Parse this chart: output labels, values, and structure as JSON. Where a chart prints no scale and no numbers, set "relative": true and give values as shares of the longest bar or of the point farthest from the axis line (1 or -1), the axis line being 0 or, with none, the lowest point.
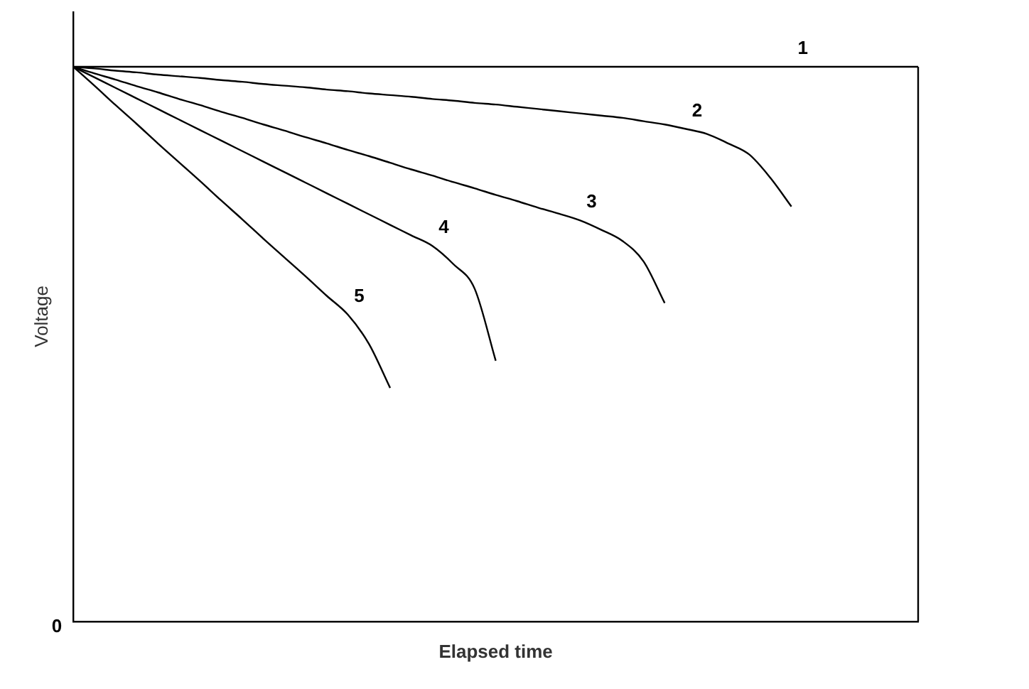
{
  "chart_data": {
    "type": "line",
    "relative": true,
    "xlabel": "Elapsed time",
    "ylabel": "Voltage",
    "marker": "none",
    "grid": false,
    "annotations": [
      "0"
    ],
    "categories": [
      null,
      null,
      null,
      null,
      null,
      null,
      null,
      null,
      null,
      null,
      null,
      null,
      null,
      null,
      null,
      null,
      null,
      null,
      null,
      null,
      null,
      null,
      null,
      null,
      null,
      null,
      null,
      null,
      null,
      null,
      null,
      null,
      null,
      null,
      null,
      null,
      null,
      null,
      null,
      null,
      null
    ],
    "series": [
      {
        "name": "1",
        "color": "#000000",
        "values": [
          1,
          1,
          1,
          1,
          1,
          1,
          1,
          1,
          1,
          1,
          1,
          1,
          1,
          1,
          1,
          1,
          1,
          1,
          1,
          1,
          1,
          1,
          1,
          1,
          1,
          1,
          1,
          1,
          1,
          1,
          1,
          1,
          1,
          1,
          1,
          1,
          1,
          1,
          1,
          1,
          1
        ]
      },
      {
        "name": "2",
        "color": "#000000",
        "values": [
          1,
          0.997,
          0.993,
          0.99,
          0.986,
          0.983,
          0.98,
          0.976,
          0.973,
          0.969,
          0.966,
          0.963,
          0.959,
          0.956,
          0.952,
          0.949,
          0.946,
          0.942,
          0.939,
          0.935,
          0.932,
          0.928,
          0.924,
          0.92,
          0.916,
          0.912,
          0.908,
          0.902,
          0.896,
          0.888,
          0.879,
          0.862,
          0.842,
          0.8,
          0.748,
          null,
          null,
          null,
          null,
          null,
          null
        ]
      },
      {
        "name": "3",
        "color": "#000000",
        "values": [
          1,
          0.988,
          0.977,
          0.965,
          0.954,
          0.942,
          0.931,
          0.919,
          0.908,
          0.896,
          0.885,
          0.873,
          0.862,
          0.85,
          0.839,
          0.827,
          0.815,
          0.804,
          0.792,
          0.781,
          0.769,
          0.758,
          0.746,
          0.735,
          0.723,
          0.706,
          0.686,
          0.649,
          0.574,
          null,
          null,
          null,
          null,
          null,
          null,
          null,
          null,
          null,
          null,
          null,
          null
        ]
      },
      {
        "name": "4",
        "color": "#000000",
        "values": [
          1,
          0.981,
          0.962,
          0.943,
          0.924,
          0.905,
          0.886,
          0.867,
          0.848,
          0.829,
          0.81,
          0.791,
          0.772,
          0.753,
          0.734,
          0.715,
          0.696,
          0.677,
          0.644,
          0.6,
          0.47,
          null,
          null,
          null,
          null,
          null,
          null,
          null,
          null,
          null,
          null,
          null,
          null,
          null,
          null,
          null,
          null,
          null,
          null,
          null,
          null
        ]
      },
      {
        "name": "5",
        "color": "#000000",
        "values": [
          1,
          0.966,
          0.931,
          0.897,
          0.862,
          0.828,
          0.794,
          0.759,
          0.725,
          0.69,
          0.656,
          0.622,
          0.587,
          0.553,
          0.5,
          0.421,
          null,
          null,
          null,
          null,
          null,
          null,
          null,
          null,
          null,
          null,
          null,
          null,
          null,
          null,
          null,
          null,
          null,
          null,
          null,
          null,
          null,
          null,
          null,
          null,
          null
        ]
      }
    ]
  }
}
